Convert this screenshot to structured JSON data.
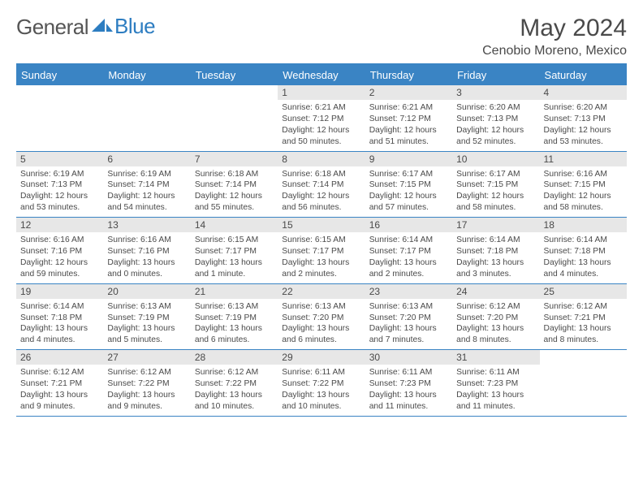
{
  "logo": {
    "text1": "General",
    "text2": "Blue"
  },
  "title": "May 2024",
  "location": "Cenobio Moreno, Mexico",
  "colors": {
    "header_bar": "#3a84c4",
    "day_bg": "#e7e7e7",
    "text": "#4a4a4a",
    "logo_blue": "#2d7dc1"
  },
  "dow": [
    "Sunday",
    "Monday",
    "Tuesday",
    "Wednesday",
    "Thursday",
    "Friday",
    "Saturday"
  ],
  "weeks": [
    [
      {
        "n": "",
        "sr": "",
        "ss": "",
        "dl": ""
      },
      {
        "n": "",
        "sr": "",
        "ss": "",
        "dl": ""
      },
      {
        "n": "",
        "sr": "",
        "ss": "",
        "dl": ""
      },
      {
        "n": "1",
        "sr": "Sunrise: 6:21 AM",
        "ss": "Sunset: 7:12 PM",
        "dl": "Daylight: 12 hours and 50 minutes."
      },
      {
        "n": "2",
        "sr": "Sunrise: 6:21 AM",
        "ss": "Sunset: 7:12 PM",
        "dl": "Daylight: 12 hours and 51 minutes."
      },
      {
        "n": "3",
        "sr": "Sunrise: 6:20 AM",
        "ss": "Sunset: 7:13 PM",
        "dl": "Daylight: 12 hours and 52 minutes."
      },
      {
        "n": "4",
        "sr": "Sunrise: 6:20 AM",
        "ss": "Sunset: 7:13 PM",
        "dl": "Daylight: 12 hours and 53 minutes."
      }
    ],
    [
      {
        "n": "5",
        "sr": "Sunrise: 6:19 AM",
        "ss": "Sunset: 7:13 PM",
        "dl": "Daylight: 12 hours and 53 minutes."
      },
      {
        "n": "6",
        "sr": "Sunrise: 6:19 AM",
        "ss": "Sunset: 7:14 PM",
        "dl": "Daylight: 12 hours and 54 minutes."
      },
      {
        "n": "7",
        "sr": "Sunrise: 6:18 AM",
        "ss": "Sunset: 7:14 PM",
        "dl": "Daylight: 12 hours and 55 minutes."
      },
      {
        "n": "8",
        "sr": "Sunrise: 6:18 AM",
        "ss": "Sunset: 7:14 PM",
        "dl": "Daylight: 12 hours and 56 minutes."
      },
      {
        "n": "9",
        "sr": "Sunrise: 6:17 AM",
        "ss": "Sunset: 7:15 PM",
        "dl": "Daylight: 12 hours and 57 minutes."
      },
      {
        "n": "10",
        "sr": "Sunrise: 6:17 AM",
        "ss": "Sunset: 7:15 PM",
        "dl": "Daylight: 12 hours and 58 minutes."
      },
      {
        "n": "11",
        "sr": "Sunrise: 6:16 AM",
        "ss": "Sunset: 7:15 PM",
        "dl": "Daylight: 12 hours and 58 minutes."
      }
    ],
    [
      {
        "n": "12",
        "sr": "Sunrise: 6:16 AM",
        "ss": "Sunset: 7:16 PM",
        "dl": "Daylight: 12 hours and 59 minutes."
      },
      {
        "n": "13",
        "sr": "Sunrise: 6:16 AM",
        "ss": "Sunset: 7:16 PM",
        "dl": "Daylight: 13 hours and 0 minutes."
      },
      {
        "n": "14",
        "sr": "Sunrise: 6:15 AM",
        "ss": "Sunset: 7:17 PM",
        "dl": "Daylight: 13 hours and 1 minute."
      },
      {
        "n": "15",
        "sr": "Sunrise: 6:15 AM",
        "ss": "Sunset: 7:17 PM",
        "dl": "Daylight: 13 hours and 2 minutes."
      },
      {
        "n": "16",
        "sr": "Sunrise: 6:14 AM",
        "ss": "Sunset: 7:17 PM",
        "dl": "Daylight: 13 hours and 2 minutes."
      },
      {
        "n": "17",
        "sr": "Sunrise: 6:14 AM",
        "ss": "Sunset: 7:18 PM",
        "dl": "Daylight: 13 hours and 3 minutes."
      },
      {
        "n": "18",
        "sr": "Sunrise: 6:14 AM",
        "ss": "Sunset: 7:18 PM",
        "dl": "Daylight: 13 hours and 4 minutes."
      }
    ],
    [
      {
        "n": "19",
        "sr": "Sunrise: 6:14 AM",
        "ss": "Sunset: 7:18 PM",
        "dl": "Daylight: 13 hours and 4 minutes."
      },
      {
        "n": "20",
        "sr": "Sunrise: 6:13 AM",
        "ss": "Sunset: 7:19 PM",
        "dl": "Daylight: 13 hours and 5 minutes."
      },
      {
        "n": "21",
        "sr": "Sunrise: 6:13 AM",
        "ss": "Sunset: 7:19 PM",
        "dl": "Daylight: 13 hours and 6 minutes."
      },
      {
        "n": "22",
        "sr": "Sunrise: 6:13 AM",
        "ss": "Sunset: 7:20 PM",
        "dl": "Daylight: 13 hours and 6 minutes."
      },
      {
        "n": "23",
        "sr": "Sunrise: 6:13 AM",
        "ss": "Sunset: 7:20 PM",
        "dl": "Daylight: 13 hours and 7 minutes."
      },
      {
        "n": "24",
        "sr": "Sunrise: 6:12 AM",
        "ss": "Sunset: 7:20 PM",
        "dl": "Daylight: 13 hours and 8 minutes."
      },
      {
        "n": "25",
        "sr": "Sunrise: 6:12 AM",
        "ss": "Sunset: 7:21 PM",
        "dl": "Daylight: 13 hours and 8 minutes."
      }
    ],
    [
      {
        "n": "26",
        "sr": "Sunrise: 6:12 AM",
        "ss": "Sunset: 7:21 PM",
        "dl": "Daylight: 13 hours and 9 minutes."
      },
      {
        "n": "27",
        "sr": "Sunrise: 6:12 AM",
        "ss": "Sunset: 7:22 PM",
        "dl": "Daylight: 13 hours and 9 minutes."
      },
      {
        "n": "28",
        "sr": "Sunrise: 6:12 AM",
        "ss": "Sunset: 7:22 PM",
        "dl": "Daylight: 13 hours and 10 minutes."
      },
      {
        "n": "29",
        "sr": "Sunrise: 6:11 AM",
        "ss": "Sunset: 7:22 PM",
        "dl": "Daylight: 13 hours and 10 minutes."
      },
      {
        "n": "30",
        "sr": "Sunrise: 6:11 AM",
        "ss": "Sunset: 7:23 PM",
        "dl": "Daylight: 13 hours and 11 minutes."
      },
      {
        "n": "31",
        "sr": "Sunrise: 6:11 AM",
        "ss": "Sunset: 7:23 PM",
        "dl": "Daylight: 13 hours and 11 minutes."
      },
      {
        "n": "",
        "sr": "",
        "ss": "",
        "dl": ""
      }
    ]
  ]
}
